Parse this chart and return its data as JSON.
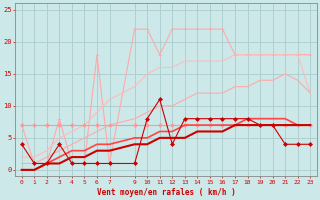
{
  "title": "",
  "xlabel": "Vent moyen/en rafales ( km/h )",
  "bg_color": "#cce8e8",
  "grid_color": "#aacccc",
  "text_color": "#cc0000",
  "xlim": [
    -0.5,
    23.5
  ],
  "ylim": [
    -1,
    26
  ],
  "xticks": [
    0,
    1,
    2,
    3,
    4,
    5,
    6,
    7,
    9,
    10,
    11,
    12,
    13,
    14,
    15,
    16,
    17,
    18,
    19,
    20,
    21,
    22,
    23
  ],
  "yticks": [
    0,
    5,
    10,
    15,
    20,
    25
  ],
  "series": [
    {
      "x": [
        0,
        1,
        2,
        3,
        4,
        5,
        6,
        7,
        9,
        10,
        11,
        12,
        13,
        14,
        15,
        16,
        17,
        18,
        19,
        20,
        21,
        22,
        23
      ],
      "y": [
        7,
        1,
        1,
        8,
        1,
        1,
        18,
        1,
        22,
        22,
        18,
        22,
        22,
        22,
        22,
        22,
        18,
        18,
        18,
        18,
        18,
        18,
        18
      ],
      "color": "#ffaaaa",
      "lw": 0.8,
      "marker": "+",
      "ms": 3.5,
      "zorder": 2
    },
    {
      "x": [
        0,
        1,
        2,
        3,
        4,
        5,
        6,
        7,
        9,
        10,
        11,
        12,
        13,
        14,
        15,
        16,
        17,
        18,
        19,
        20,
        21,
        22,
        23
      ],
      "y": [
        2,
        2,
        3,
        5,
        6,
        7,
        9,
        11,
        13,
        15,
        16,
        16,
        17,
        17,
        17,
        17,
        18,
        18,
        18,
        18,
        18,
        18,
        12
      ],
      "color": "#ffbbbb",
      "lw": 0.8,
      "marker": null,
      "ms": 0,
      "zorder": 2
    },
    {
      "x": [
        0,
        1,
        2,
        3,
        4,
        5,
        6,
        7,
        9,
        10,
        11,
        12,
        13,
        14,
        15,
        16,
        17,
        18,
        19,
        20,
        21,
        22,
        23
      ],
      "y": [
        1,
        1,
        2,
        3,
        4,
        5,
        6,
        7,
        8,
        9,
        10,
        10,
        11,
        12,
        12,
        12,
        13,
        13,
        14,
        14,
        15,
        14,
        12
      ],
      "color": "#ffaaaa",
      "lw": 0.8,
      "marker": null,
      "ms": 0,
      "zorder": 2
    },
    {
      "x": [
        0,
        1,
        2,
        3,
        4,
        5,
        6,
        7,
        9,
        10,
        11,
        12,
        13,
        14,
        15,
        16,
        17,
        18,
        19,
        20,
        21,
        22,
        23
      ],
      "y": [
        7,
        7,
        7,
        7,
        7,
        7,
        7,
        7,
        7,
        7,
        7,
        7,
        7,
        7,
        7,
        7,
        7,
        7,
        7,
        7,
        7,
        7,
        7
      ],
      "color": "#ff9999",
      "lw": 0.8,
      "marker": "D",
      "ms": 2.0,
      "zorder": 3
    },
    {
      "x": [
        0,
        1,
        2,
        3,
        4,
        5,
        6,
        7,
        9,
        10,
        11,
        12,
        13,
        14,
        15,
        16,
        17,
        18,
        19,
        20,
        21,
        22,
        23
      ],
      "y": [
        4,
        1,
        1,
        4,
        1,
        1,
        1,
        1,
        1,
        8,
        11,
        4,
        8,
        8,
        8,
        8,
        8,
        8,
        7,
        7,
        4,
        4,
        4
      ],
      "color": "#cc0000",
      "lw": 0.8,
      "marker": "D",
      "ms": 2.0,
      "zorder": 4
    },
    {
      "x": [
        0,
        1,
        2,
        3,
        4,
        5,
        6,
        7,
        9,
        10,
        11,
        12,
        13,
        14,
        15,
        16,
        17,
        18,
        19,
        20,
        21,
        22,
        23
      ],
      "y": [
        0,
        0,
        1,
        2,
        3,
        3,
        4,
        4,
        5,
        5,
        6,
        6,
        7,
        7,
        7,
        7,
        7,
        8,
        8,
        8,
        8,
        7,
        7
      ],
      "color": "#ff4444",
      "lw": 1.2,
      "marker": null,
      "ms": 0,
      "zorder": 3
    },
    {
      "x": [
        0,
        1,
        2,
        3,
        4,
        5,
        6,
        7,
        9,
        10,
        11,
        12,
        13,
        14,
        15,
        16,
        17,
        18,
        19,
        20,
        21,
        22,
        23
      ],
      "y": [
        0,
        0,
        1,
        1,
        2,
        2,
        3,
        3,
        4,
        4,
        5,
        5,
        5,
        6,
        6,
        6,
        7,
        7,
        7,
        7,
        7,
        7,
        7
      ],
      "color": "#cc0000",
      "lw": 1.5,
      "marker": null,
      "ms": 0,
      "zorder": 3
    }
  ]
}
